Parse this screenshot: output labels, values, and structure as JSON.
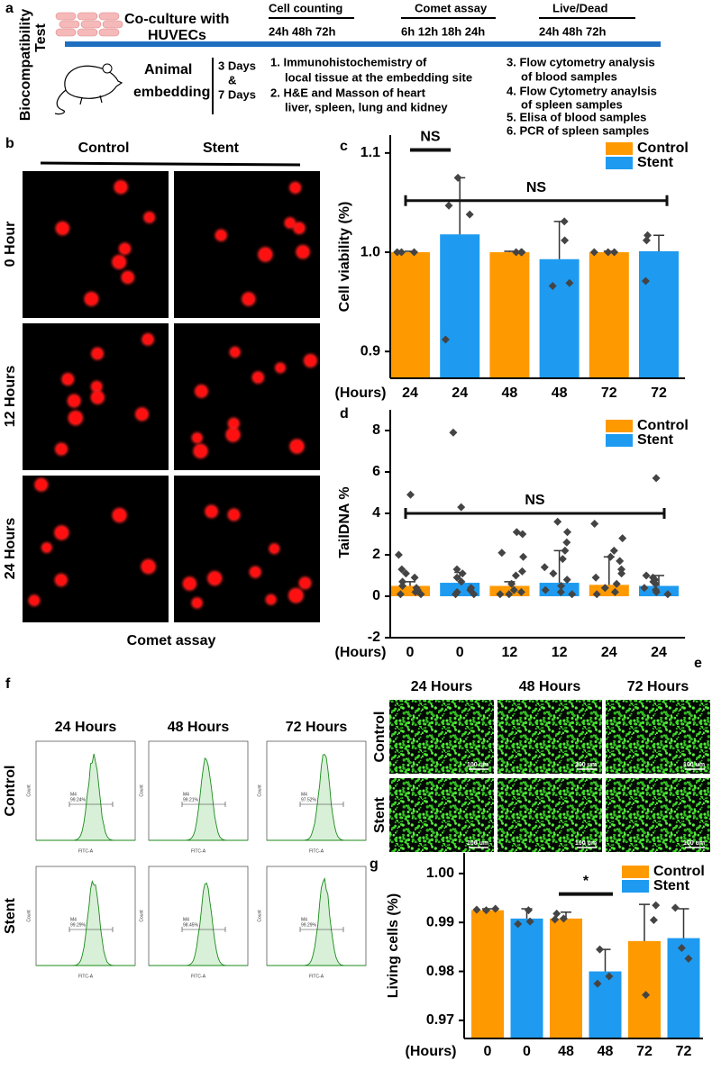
{
  "panel_a": {
    "label": "a",
    "side_title": [
      "Biocompatibility",
      "Test"
    ],
    "coculture": [
      "Co-culture with",
      "HUVECs"
    ],
    "assays": [
      {
        "name": "Cell counting",
        "times": "24h 48h 72h"
      },
      {
        "name": "Comet assay",
        "times": "6h 12h 18h 24h"
      },
      {
        "name": "Live/Dead",
        "times": "24h 48h 72h"
      }
    ],
    "animal": [
      "Animal",
      "embedding"
    ],
    "durations": [
      "3 Days",
      "&",
      "7 Days"
    ],
    "steps": [
      "1. Immunohistochemistry of",
      "local tissue at the embedding site",
      "2. H&E and Masson of heart",
      "liver, spleen, lung and kidney",
      "3. Flow cytometry analysis",
      "of blood samples",
      "4. Flow Cytometry anaylsis",
      "of spleen samples",
      "5. Elisa of blood samples",
      "6. PCR  of spleen samples"
    ]
  },
  "panel_b": {
    "label": "b",
    "columns": [
      "Control",
      "Stent"
    ],
    "rows": [
      "0 Hour",
      "12 Hours",
      "24 Hours"
    ],
    "caption": "Comet assay"
  },
  "panel_e": {
    "label": "e",
    "columns": [
      "24 Hours",
      "48 Hours",
      "72 Hours"
    ],
    "rows": [
      "Control",
      "Stent"
    ],
    "scale_bar": "100 um"
  },
  "panel_f": {
    "label": "f",
    "columns": [
      "24 Hours",
      "48 Hours",
      "72 Hours"
    ],
    "rows": [
      "Control",
      "Stent"
    ],
    "gate": "M4",
    "percents": [
      [
        "99.24%",
        "99.21%",
        "97.52%"
      ],
      [
        "99.29%",
        "98.45%",
        "99.29%"
      ]
    ],
    "x_axis": "FITC-A",
    "y_axis": "Count"
  },
  "chart_data": [
    {
      "panel": "c",
      "type": "bar",
      "ylabel": "Cell viability (%)",
      "x_label": "(Hours)",
      "categories": [
        "24",
        "24",
        "48",
        "48",
        "72",
        "72"
      ],
      "ylim": [
        0.873,
        1.118
      ],
      "yticks": [
        0.9,
        {
          "value": 1,
          "label": "1.0"
        },
        1.1
      ],
      "series": [
        {
          "name": "Control",
          "color": "#ff9900",
          "values": [
            1.0,
            null,
            1.0,
            null,
            1.0,
            null
          ],
          "errors": [
            0.001,
            null,
            0.001,
            null,
            0.001,
            null
          ],
          "points": [
            [
              1.0,
              1.0,
              1.0
            ],
            null,
            [
              1.0,
              1.0,
              1.0
            ],
            null,
            [
              1.0,
              1.0,
              1.0
            ],
            null
          ]
        },
        {
          "name": "Stent",
          "color": "#1e9bf0",
          "values": [
            null,
            1.018,
            null,
            0.993,
            null,
            1.001
          ],
          "errors": [
            null,
            0.057,
            null,
            0.038,
            null,
            0.016
          ],
          "points": [
            null,
            [
              1.075,
              1.047,
              1.038,
              0.912
            ],
            null,
            [
              1.031,
              1.012,
              0.969,
              0.966
            ],
            null,
            [
              1.017,
              1.012,
              0.971
            ]
          ]
        }
      ],
      "annotations": [
        {
          "text": "NS",
          "y": 1.103
        },
        {
          "text": "NS",
          "y": 1.052
        }
      ],
      "legend": "upper right"
    },
    {
      "panel": "d",
      "type": "bar",
      "ylabel": "TailDNA %",
      "x_label": "(Hours)",
      "categories": [
        "0",
        "0",
        "12",
        "12",
        "24",
        "24"
      ],
      "ylim": [
        -2,
        9
      ],
      "yticks": [
        -2,
        0,
        2,
        4,
        6,
        8
      ],
      "series": [
        {
          "name": "Control",
          "color": "#ff9900",
          "values": [
            0.5,
            null,
            0.5,
            null,
            0.55,
            null
          ],
          "errors": [
            0.2,
            null,
            0.2,
            null,
            1.35,
            null
          ],
          "points": [
            [
              4.9,
              2.0,
              1.3,
              1.1,
              0.9,
              0.7,
              0.5,
              0.4,
              0.3,
              0.2,
              0.1,
              0.1
            ],
            null,
            [
              3.1,
              3.0,
              2.1,
              1.9,
              1.2,
              1.0,
              0.6,
              0.3,
              0.2,
              0.1,
              0.1
            ],
            null,
            [
              3.5,
              2.8,
              2.2,
              1.9,
              1.7,
              1.3,
              1.1,
              0.9,
              0.6,
              0.4,
              0.2,
              0.1
            ],
            null
          ]
        },
        {
          "name": "Stent",
          "color": "#1e9bf0",
          "values": [
            null,
            0.65,
            null,
            0.65,
            null,
            0.5
          ],
          "errors": [
            null,
            0.5,
            null,
            1.55,
            null,
            0.5
          ],
          "points": [
            null,
            [
              7.9,
              4.3,
              1.3,
              1.1,
              0.9,
              0.7,
              0.4,
              0.3,
              0.2,
              0.1,
              0.1
            ],
            null,
            [
              3.6,
              3.1,
              2.6,
              2.2,
              1.8,
              1.4,
              1.1,
              0.8,
              0.5,
              0.3,
              0.2,
              0.1
            ],
            null,
            [
              5.7,
              1.0,
              0.9,
              0.8,
              0.7,
              0.6,
              0.4,
              0.3,
              0.2,
              0.1
            ]
          ]
        }
      ],
      "annotations": [
        {
          "text": "NS",
          "y": 4.0
        }
      ],
      "legend": "upper right"
    },
    {
      "panel": "g",
      "type": "bar",
      "ylabel": "Living cells (%)",
      "x_label": "(Hours)",
      "categories": [
        "0",
        "0",
        "48",
        "48",
        "72",
        "72"
      ],
      "ylim": [
        0.9663,
        1.0042
      ],
      "yticks": [
        0.97,
        0.98,
        0.99,
        {
          "value": 1,
          "label": "1.00"
        }
      ],
      "series": [
        {
          "name": "Control",
          "color": "#ff9900",
          "values": [
            0.9925,
            null,
            0.9908,
            null,
            0.9862,
            null
          ],
          "errors": [
            0.0003,
            null,
            0.0013,
            null,
            0.0075,
            null
          ],
          "points": [
            [
              0.9928,
              0.9926,
              0.9925
            ],
            null,
            [
              0.9918,
              0.9908,
              0.9906
            ],
            null,
            [
              0.9935,
              0.9905,
              0.9752
            ],
            null
          ]
        },
        {
          "name": "Stent",
          "color": "#1e9bf0",
          "values": [
            null,
            0.9908,
            null,
            0.98,
            null,
            0.9868
          ],
          "errors": [
            null,
            0.002,
            null,
            0.0045,
            null,
            0.006
          ],
          "points": [
            null,
            [
              0.9925,
              0.9902,
              0.9897
            ],
            null,
            [
              0.9845,
              0.979,
              0.9775
            ],
            null,
            [
              0.993,
              0.9848,
              0.9826
            ]
          ]
        }
      ],
      "annotations": [
        {
          "text": "*",
          "y": 0.9958
        }
      ],
      "legend": "upper right"
    }
  ]
}
